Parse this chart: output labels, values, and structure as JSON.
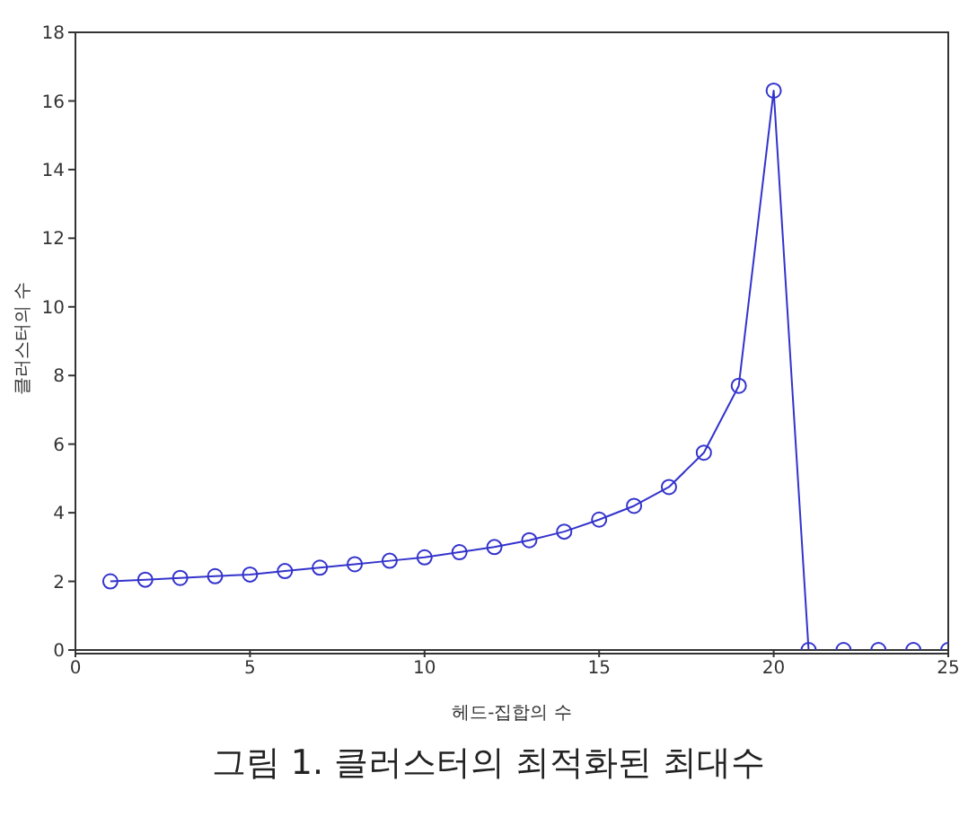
{
  "chart_data": {
    "type": "line",
    "xlabel": "헤드-집합의 수",
    "ylabel": "클러스터의 수",
    "annotations": [
      "그림 1. 클러스터의 최적화된 최대수"
    ],
    "x": [
      1,
      2,
      3,
      4,
      5,
      6,
      7,
      8,
      9,
      10,
      11,
      12,
      13,
      14,
      15,
      16,
      17,
      18,
      19,
      20,
      21,
      22,
      23,
      24,
      25
    ],
    "series": [
      {
        "color": "#3333cc",
        "values": [
          2.0,
          2.05,
          2.1,
          2.15,
          2.2,
          2.3,
          2.4,
          2.5,
          2.6,
          2.7,
          2.85,
          3.0,
          3.2,
          3.45,
          3.8,
          4.2,
          4.75,
          5.75,
          7.7,
          16.3,
          0,
          0,
          0,
          0,
          0
        ]
      }
    ],
    "xlim": [
      0,
      25
    ],
    "xticks": [
      0,
      5,
      10,
      15,
      20,
      25
    ],
    "ylim": [
      0,
      18
    ],
    "yticks": [
      0,
      2,
      4,
      6,
      8,
      10,
      12,
      14,
      16,
      18
    ],
    "marker": "circle",
    "line_style": "solid",
    "grid": false,
    "legend": false
  }
}
